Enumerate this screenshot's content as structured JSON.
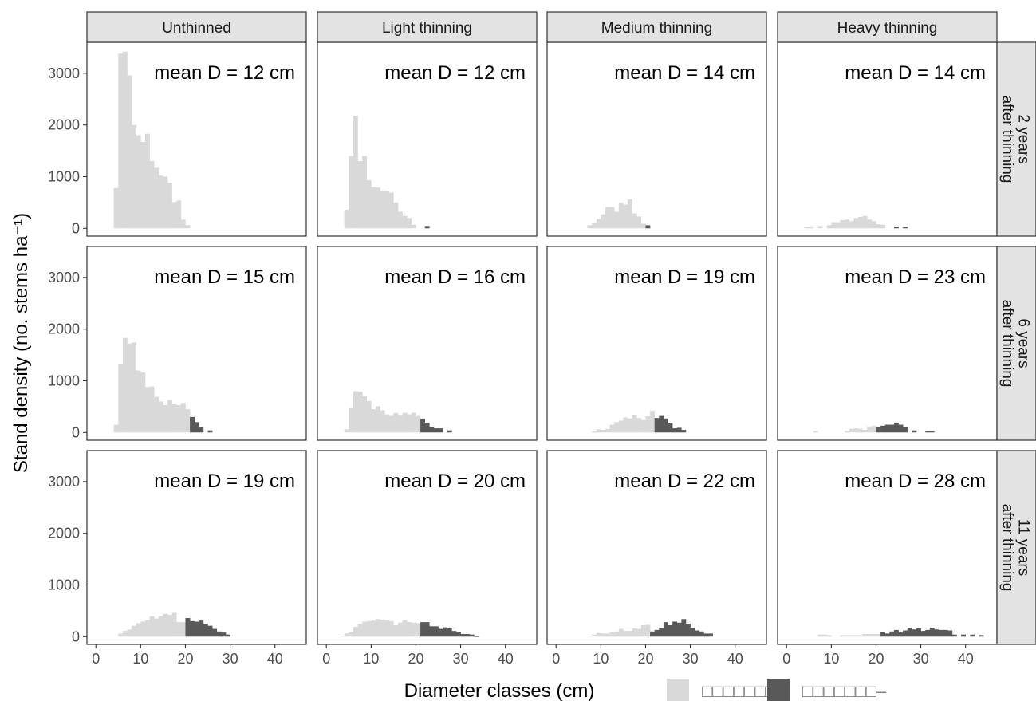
{
  "chart_data": {
    "type": "bar",
    "ylabel": "Stand density (no. stems ha⁻¹)",
    "xlabel": "Diameter classes (cm)",
    "xlim": [
      -2,
      47
    ],
    "ylim": [
      -150,
      3600
    ],
    "x_ticks": [
      0,
      10,
      20,
      30,
      40
    ],
    "y_ticks": [
      0,
      1000,
      2000,
      3000
    ],
    "bin_width_cm": 1,
    "columns": [
      "Unthinned",
      "Light thinning",
      "Medium thinning",
      "Heavy thinning"
    ],
    "rows": [
      "2 years\nafter thinning",
      "6 years\nafter thinning",
      "11 years\nafter thinning"
    ],
    "legend": {
      "position": "bottom",
      "items": [
        {
          "label": "□□□□□□□–",
          "color": "#d9d9d9"
        },
        {
          "label": "□□□□□□□–",
          "color": "#595959"
        }
      ]
    },
    "colors": {
      "light": "#d9d9d9",
      "dark": "#595959"
    },
    "panels": [
      {
        "row": 0,
        "col": 0,
        "label": "mean D = 12 cm",
        "x_start": 4,
        "light": [
          780,
          3380,
          3420,
          2960,
          2000,
          1800,
          1670,
          1830,
          1300,
          1170,
          1020,
          1000,
          880,
          510,
          540,
          170,
          60
        ],
        "dark": []
      },
      {
        "row": 0,
        "col": 1,
        "label": "mean D = 12 cm",
        "x_start": 4,
        "light": [
          360,
          1400,
          2180,
          1300,
          1400,
          930,
          800,
          790,
          720,
          730,
          690,
          500,
          320,
          240,
          200,
          70
        ],
        "dark": [
          0,
          0,
          30
        ]
      },
      {
        "row": 0,
        "col": 2,
        "label": "mean D = 14 cm",
        "x_start": 7,
        "light": [
          60,
          100,
          180,
          270,
          410,
          410,
          320,
          500,
          460,
          560,
          290,
          230,
          90
        ],
        "dark": [
          60
        ]
      },
      {
        "row": 0,
        "col": 3,
        "label": "mean D = 14 cm",
        "x_start": 4,
        "light": [
          20,
          20,
          0,
          30,
          0,
          60,
          120,
          120,
          160,
          170,
          140,
          200,
          220,
          240,
          170,
          140,
          80,
          70
        ],
        "dark": [
          0,
          0,
          20,
          0,
          20
        ]
      },
      {
        "row": 1,
        "col": 0,
        "label": "mean D = 15 cm",
        "x_start": 4,
        "light": [
          150,
          1330,
          1830,
          1720,
          1740,
          1200,
          1160,
          880,
          890,
          690,
          600,
          530,
          630,
          560,
          530,
          570,
          450
        ],
        "dark": [
          300,
          200,
          100,
          0,
          40
        ]
      },
      {
        "row": 1,
        "col": 1,
        "label": "mean D = 16 cm",
        "x_start": 4,
        "light": [
          60,
          470,
          800,
          790,
          700,
          610,
          450,
          510,
          430,
          350,
          320,
          380,
          340,
          380,
          350,
          380,
          320
        ],
        "dark": [
          260,
          190,
          110,
          80,
          80,
          0,
          40
        ]
      },
      {
        "row": 1,
        "col": 2,
        "label": "mean D = 19 cm",
        "x_start": 8,
        "light": [
          20,
          60,
          50,
          70,
          150,
          200,
          230,
          290,
          270,
          340,
          280,
          240,
          310,
          420
        ],
        "dark": [
          280,
          320,
          270,
          190,
          80,
          90,
          50
        ]
      },
      {
        "row": 1,
        "col": 3,
        "label": "mean D = 23 cm",
        "x_start": 6,
        "light": [
          30,
          0,
          0,
          0,
          0,
          0,
          0,
          30,
          70,
          80,
          70,
          50,
          110,
          130
        ],
        "dark": [
          100,
          130,
          150,
          150,
          190,
          150,
          100,
          0,
          40,
          0,
          0,
          30,
          30
        ]
      },
      {
        "row": 2,
        "col": 0,
        "label": "mean D = 19 cm",
        "x_start": 5,
        "light": [
          60,
          110,
          140,
          210,
          260,
          290,
          320,
          390,
          350,
          400,
          440,
          420,
          460,
          280,
          280
        ],
        "dark": [
          360,
          300,
          290,
          310,
          250,
          210,
          150,
          100,
          80,
          40
        ]
      },
      {
        "row": 2,
        "col": 1,
        "label": "mean D = 20 cm",
        "x_start": 3,
        "light": [
          20,
          60,
          90,
          190,
          250,
          290,
          300,
          310,
          340,
          330,
          320,
          300,
          220,
          270,
          320,
          280,
          270,
          260
        ],
        "dark": [
          280,
          280,
          200,
          200,
          150,
          180,
          160,
          110,
          90,
          50,
          50,
          40,
          10
        ]
      },
      {
        "row": 2,
        "col": 2,
        "label": "mean D = 22 cm",
        "x_start": 7,
        "light": [
          20,
          40,
          70,
          60,
          60,
          80,
          100,
          150,
          110,
          110,
          160,
          150,
          220,
          230
        ],
        "dark": [
          100,
          130,
          170,
          280,
          220,
          290,
          270,
          340,
          250,
          170,
          120,
          100,
          60,
          60
        ]
      },
      {
        "row": 2,
        "col": 3,
        "label": "mean D = 28 cm",
        "x_start": 7,
        "light": [
          40,
          40,
          30,
          0,
          0,
          30,
          30,
          30,
          30,
          30,
          50,
          50,
          50,
          50
        ],
        "dark": [
          90,
          60,
          100,
          130,
          80,
          120,
          170,
          140,
          160,
          110,
          130,
          170,
          140,
          130,
          130,
          120,
          40,
          0,
          40,
          0,
          40,
          0,
          30
        ]
      }
    ]
  }
}
